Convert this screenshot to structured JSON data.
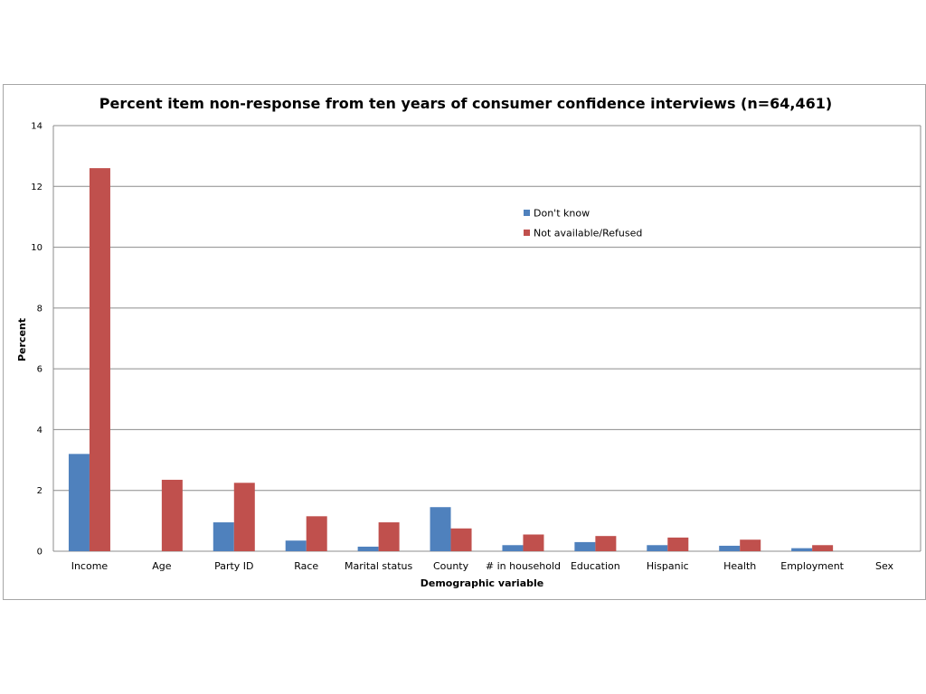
{
  "chart_data": {
    "type": "bar",
    "title": "Percent item non-response from ten years of consumer confidence interviews (n=64,461)",
    "xlabel": "Demographic variable",
    "ylabel": "Percent",
    "ylim": [
      0,
      14
    ],
    "yticks": [
      0,
      2,
      4,
      6,
      8,
      10,
      12,
      14
    ],
    "grid": true,
    "legend_position": "top-right",
    "categories": [
      "Income",
      "Age",
      "Party ID",
      "Race",
      "Marital status",
      "County",
      "# in household",
      "Education",
      "Hispanic",
      "Health",
      "Employment",
      "Sex"
    ],
    "series": [
      {
        "name": "Don't know",
        "color": "#4f81bd",
        "values": [
          3.2,
          0,
          0.95,
          0.35,
          0.15,
          1.45,
          0.2,
          0.3,
          0.2,
          0.18,
          0.1,
          0
        ]
      },
      {
        "name": "Not available/Refused",
        "color": "#c0504d",
        "values": [
          12.6,
          2.35,
          2.25,
          1.15,
          0.95,
          0.75,
          0.55,
          0.5,
          0.45,
          0.38,
          0.2,
          0
        ]
      }
    ]
  }
}
